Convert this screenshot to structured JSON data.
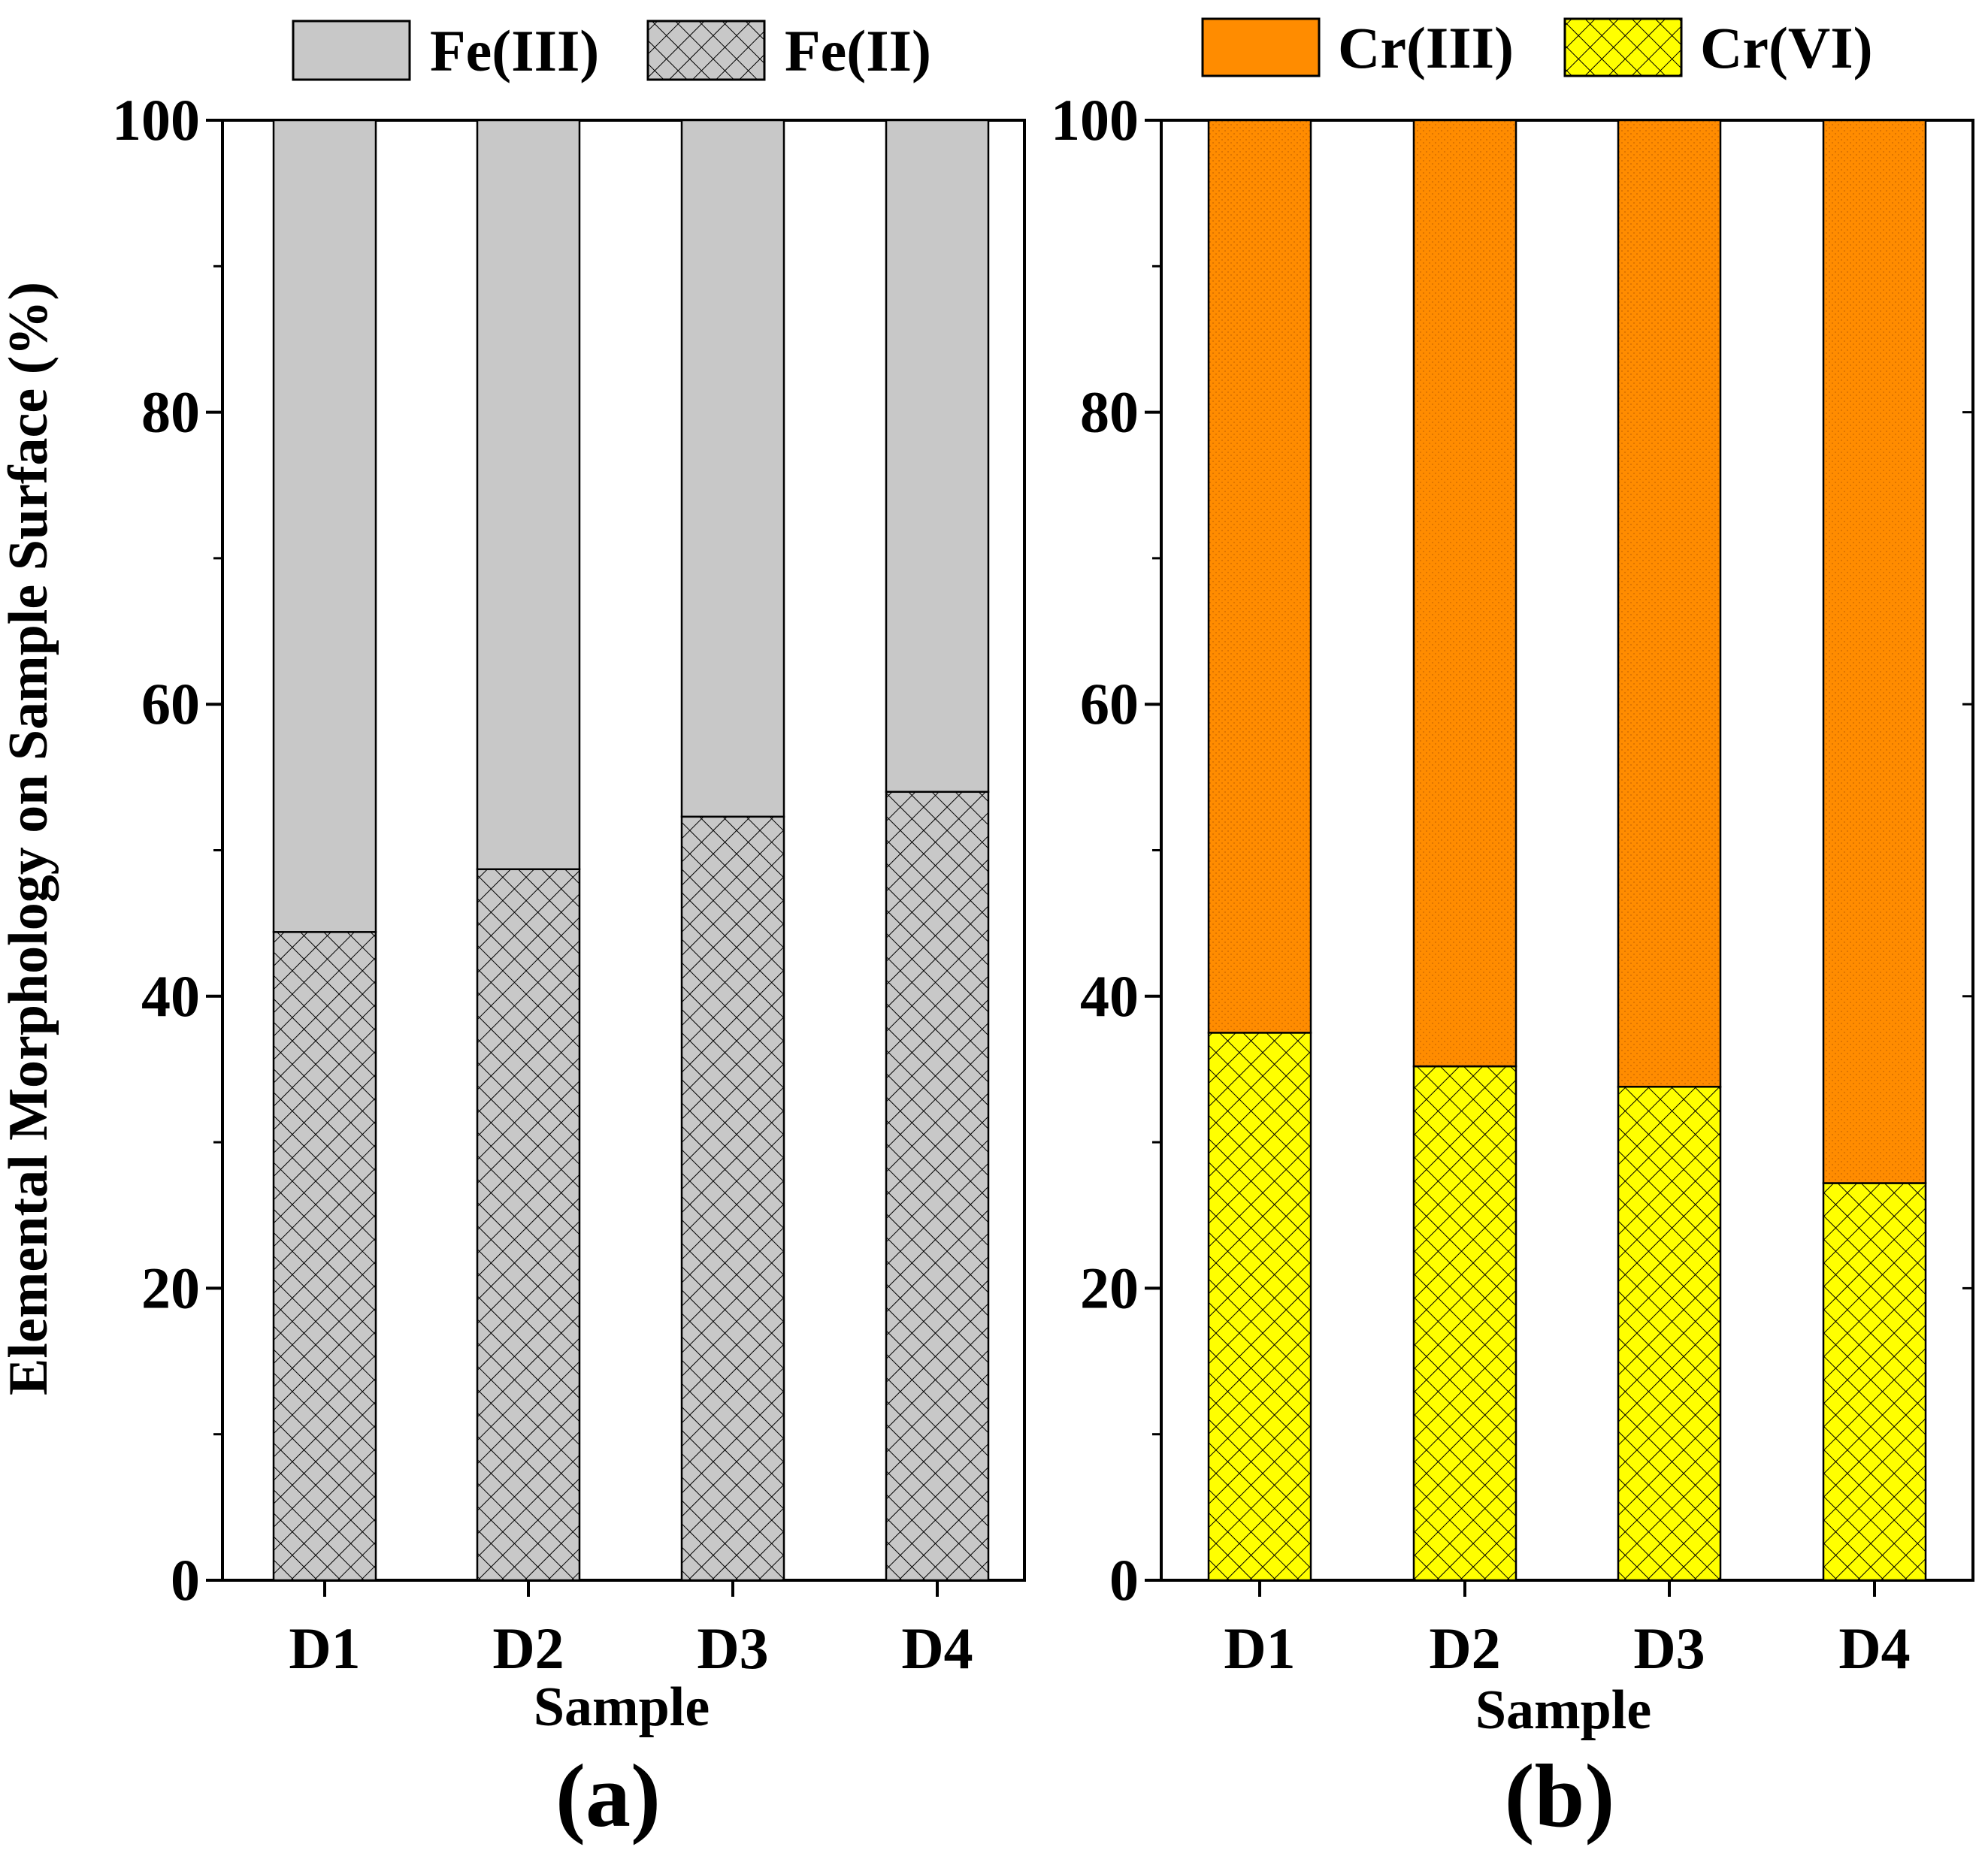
{
  "y_axis_label": "Elemental Morphology on Sample Surface (%)",
  "colors": {
    "fe_iii": "#c8c8c8",
    "fe_ii": "#c8c8c8",
    "cr_iii": "#ff8c00",
    "cr_vi": "#ffff00",
    "hatch": "#000000"
  },
  "chart_data": [
    {
      "type": "bar",
      "stacked": true,
      "panel_label": "(a)",
      "title": "",
      "xlabel": "Sample",
      "ylabel": "Elemental Morphology on Sample Surface (%)",
      "categories": [
        "D1",
        "D2",
        "D3",
        "D4"
      ],
      "ylim": [
        0,
        100
      ],
      "yticks": [
        "0",
        "20",
        "40",
        "60",
        "80",
        "100"
      ],
      "series": [
        {
          "name": "Fe(II)",
          "values": [
            44.4,
            48.7,
            52.3,
            54.0
          ],
          "pattern": "crosshatch",
          "color": "#c8c8c8"
        },
        {
          "name": "Fe(III)",
          "values": [
            55.6,
            51.3,
            47.7,
            46.0
          ],
          "pattern": "solid",
          "color": "#c8c8c8"
        }
      ],
      "legend": [
        "Fe(III)",
        "Fe(II)"
      ],
      "legend_position": "top"
    },
    {
      "type": "bar",
      "stacked": true,
      "panel_label": "(b)",
      "title": "",
      "xlabel": "Sample",
      "ylabel": "",
      "categories": [
        "D1",
        "D2",
        "D3",
        "D4"
      ],
      "ylim": [
        0,
        100
      ],
      "yticks": [
        "0",
        "20",
        "40",
        "60",
        "80",
        "100"
      ],
      "series": [
        {
          "name": "Cr(VI)",
          "values": [
            37.5,
            35.2,
            33.8,
            27.2
          ],
          "pattern": "crosshatch",
          "color": "#ffff00"
        },
        {
          "name": "Cr(III)",
          "values": [
            62.5,
            64.8,
            66.2,
            72.8
          ],
          "pattern": "dotted",
          "color": "#ff8c00"
        }
      ],
      "legend": [
        "Cr(III)",
        "Cr(VI)"
      ],
      "legend_position": "top"
    }
  ]
}
